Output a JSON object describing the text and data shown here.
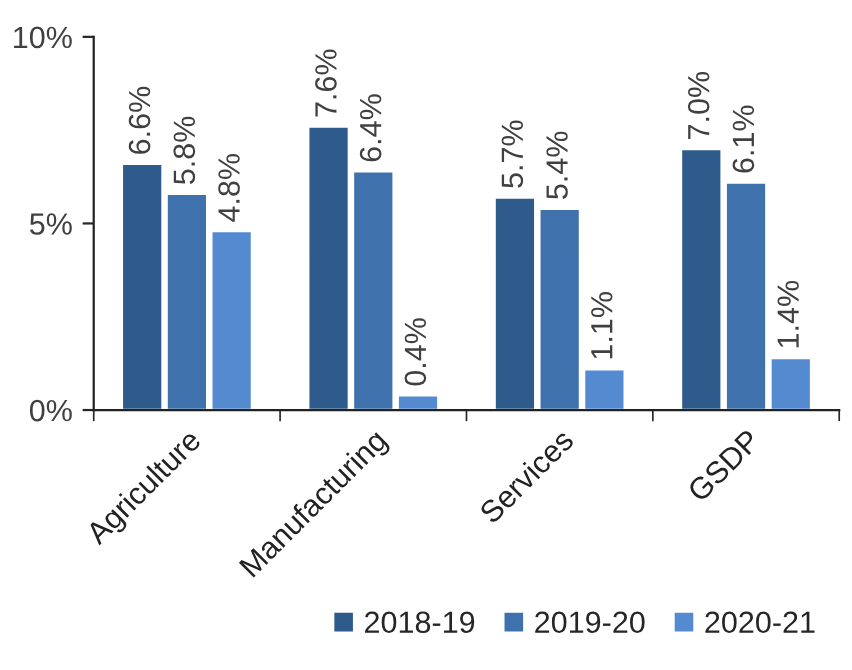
{
  "chart_data": {
    "type": "bar",
    "categories": [
      "Agriculture",
      "Manufacturing",
      "Services",
      "GSDP"
    ],
    "series": [
      {
        "name": "2018-19",
        "color": "#2f5b8c",
        "values": [
          6.6,
          7.6,
          5.7,
          7.0
        ],
        "value_labels": [
          "6.6%",
          "7.6%",
          "5.7%",
          "7.0%"
        ]
      },
      {
        "name": "2019-20",
        "color": "#3f72ad",
        "values": [
          5.8,
          6.4,
          5.4,
          6.1
        ],
        "value_labels": [
          "5.8%",
          "6.4%",
          "5.4%",
          "6.1%"
        ]
      },
      {
        "name": "2020-21",
        "color": "#548bd0",
        "values": [
          4.8,
          0.4,
          1.1,
          1.4
        ],
        "value_labels": [
          "4.8%",
          "0.4%",
          "1.1%",
          "1.4%"
        ]
      }
    ],
    "ylim": [
      0,
      10
    ],
    "yticks": [
      {
        "value": 0,
        "label": "0%"
      },
      {
        "value": 5,
        "label": "5%"
      },
      {
        "value": 10,
        "label": "10%"
      }
    ],
    "grid": false,
    "legend": "bottom right"
  }
}
